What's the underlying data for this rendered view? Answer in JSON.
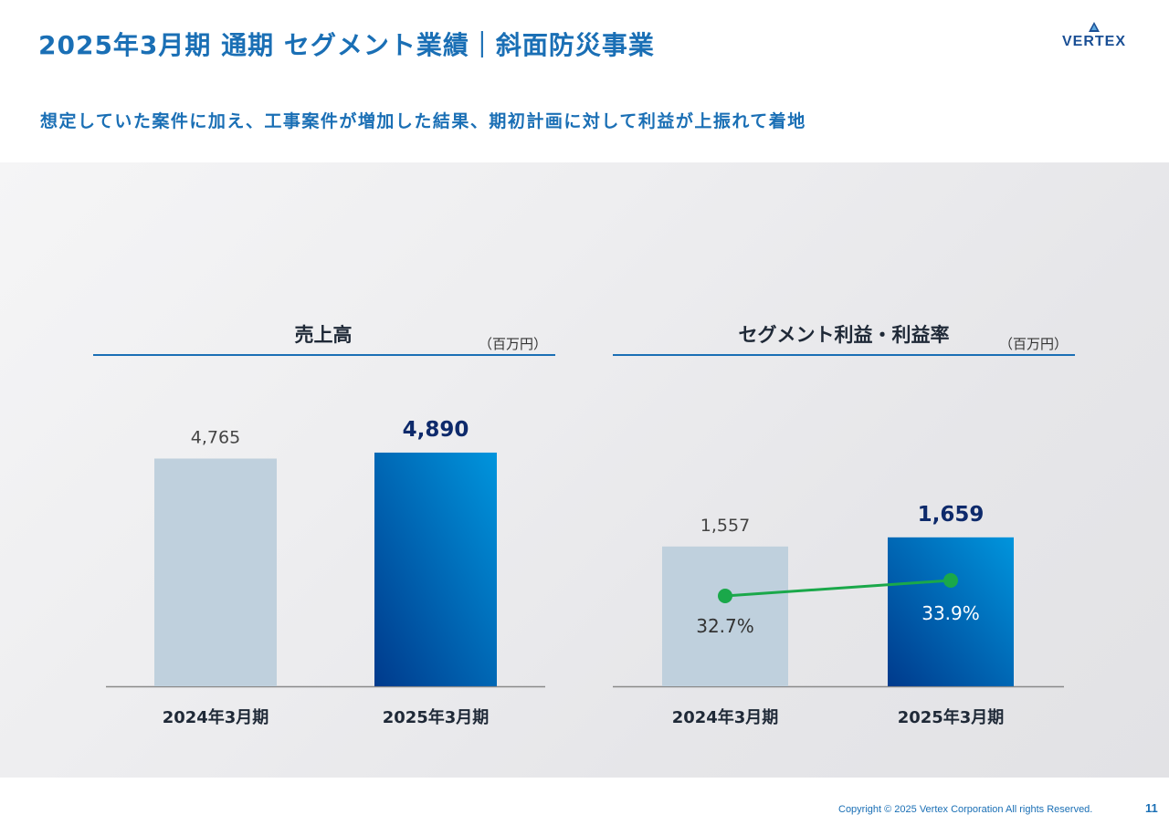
{
  "header": {
    "title": "2025年3月期 通期 セグメント業績｜斜面防災事業",
    "logo_text": "VERTEX",
    "subtitle": "想定していた案件に加え、工事案件が増加した結果、期初計画に対して利益が上振れて着地"
  },
  "colors": {
    "accent": "#1a6fb5",
    "prev_bar": "#bfd0dd",
    "curr_bar_dark": "#003a8c",
    "curr_bar_light": "#0095dd",
    "margin_line": "#1aa84a",
    "curr_label": "#0e2a6b"
  },
  "chart_data": [
    {
      "type": "bar",
      "title": "売上高",
      "unit": "（百万円）",
      "categories": [
        "2024年3月期",
        "2025年3月期"
      ],
      "series": [
        {
          "values": [
            4765,
            4890
          ],
          "labels": [
            "4,765",
            "4,890"
          ]
        }
      ],
      "ylim": [
        0,
        5500
      ]
    },
    {
      "type": "bar",
      "title": "セグメント利益・利益率",
      "unit": "（百万円）",
      "categories": [
        "2024年3月期",
        "2025年3月期"
      ],
      "series": [
        {
          "values": [
            1557,
            1659
          ],
          "labels": [
            "1,557",
            "1,659"
          ]
        },
        {
          "type": "line",
          "values": [
            32.7,
            33.9
          ],
          "labels": [
            "32.7%",
            "33.9%"
          ]
        }
      ],
      "ylim": [
        0,
        2450
      ]
    }
  ],
  "footer": {
    "copyright": "Copyright © 2025 Vertex Corporation All rights Reserved.",
    "page_number": "11"
  }
}
